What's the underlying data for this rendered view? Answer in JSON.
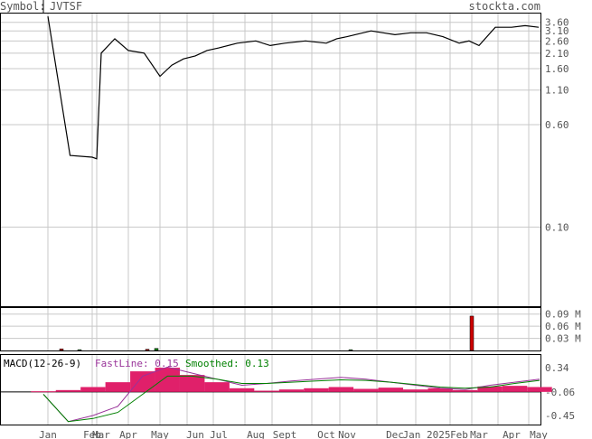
{
  "header": {
    "symbol_label": "Symbol:",
    "symbol": "JVTSF",
    "site": "stockta.com"
  },
  "colors": {
    "price_line": "#000000",
    "grid": "#c8c8c8",
    "volume_up": "#008000",
    "volume_down": "#cc0000",
    "macd_fast": "#993399",
    "macd_smooth": "#008000",
    "macd_hist": "#e0206a",
    "label_text": "#555555"
  },
  "chart_data": {
    "type": "line",
    "price_axis": {
      "scale": "log",
      "tick_labels": [
        "3.60",
        "3.10",
        "2.60",
        "2.10",
        "1.60",
        "1.10",
        "0.60",
        "0.10"
      ]
    },
    "x_labels": [
      "Jan",
      "Feb",
      "Mar",
      "Apr",
      "May",
      "Jun",
      "Jul",
      "Aug",
      "Sept",
      "Oct",
      "Nov",
      "Dec",
      "Jan 2025",
      "Feb",
      "Mar",
      "Apr",
      "May"
    ],
    "price": [
      [
        "Jan",
        4.0
      ],
      [
        "Jan",
        0.35
      ],
      [
        "Feb",
        0.34
      ],
      [
        "Feb",
        0.33
      ],
      [
        "Mar",
        2.1
      ],
      [
        "Mar",
        2.7
      ],
      [
        "Apr",
        2.2
      ],
      [
        "Apr",
        2.1
      ],
      [
        "May",
        1.4
      ],
      [
        "May",
        1.7
      ],
      [
        "May",
        1.9
      ],
      [
        "Jun",
        2.0
      ],
      [
        "Jun",
        2.2
      ],
      [
        "Jul",
        2.3
      ],
      [
        "Jul",
        2.5
      ],
      [
        "Aug",
        2.6
      ],
      [
        "Aug",
        2.4
      ],
      [
        "Sept",
        2.5
      ],
      [
        "Sept",
        2.6
      ],
      [
        "Oct",
        2.5
      ],
      [
        "Oct",
        2.7
      ],
      [
        "Nov",
        2.8
      ],
      [
        "Nov",
        3.1
      ],
      [
        "Dec",
        2.9
      ],
      [
        "Dec",
        3.0
      ],
      [
        "Jan 2025",
        3.0
      ],
      [
        "Jan 2025",
        2.8
      ],
      [
        "Feb",
        2.5
      ],
      [
        "Feb",
        2.6
      ],
      [
        "Mar",
        2.4
      ],
      [
        "Mar",
        3.3
      ],
      [
        "Apr",
        3.3
      ],
      [
        "Apr",
        3.4
      ],
      [
        "May",
        3.3
      ]
    ],
    "volume": {
      "tick_labels": [
        "0.09 M",
        "0.06 M",
        "0.03 M"
      ],
      "bars": [
        {
          "x": "Jan",
          "v": 0.004,
          "dir": "down"
        },
        {
          "x": "Feb",
          "v": 0.002,
          "dir": "up"
        },
        {
          "x": "Apr",
          "v": 0.003,
          "dir": "down"
        },
        {
          "x": "May",
          "v": 0.005,
          "dir": "up"
        },
        {
          "x": "Oct",
          "v": 0.002,
          "dir": "up"
        },
        {
          "x": "Feb",
          "v": 0.085,
          "dir": "down"
        }
      ]
    },
    "macd": {
      "label": "MACD(12-26-9)",
      "fast_label": "FastLine: 0.15",
      "smooth_label": "Smoothed: 0.13",
      "tick_labels": [
        "0.34",
        "-0.06",
        "-0.45"
      ],
      "fast": [
        -0.1,
        -0.55,
        -0.45,
        -0.3,
        0.2,
        0.35,
        0.25,
        0.15,
        0.05,
        0.08,
        0.12,
        0.15,
        0.18,
        0.15,
        0.1,
        0.05,
        0.0,
        -0.02,
        0.05,
        0.1,
        0.15
      ],
      "smooth": [
        -0.1,
        -0.55,
        -0.5,
        -0.4,
        -0.1,
        0.2,
        0.2,
        0.15,
        0.08,
        0.08,
        0.1,
        0.12,
        0.14,
        0.13,
        0.1,
        0.06,
        0.02,
        0.0,
        0.02,
        0.08,
        0.13
      ],
      "hist": [
        -0.05,
        -0.03,
        0.02,
        0.1,
        0.28,
        0.34,
        0.22,
        0.1,
        0.0,
        -0.04,
        -0.02,
        0.0,
        0.02,
        -0.01,
        0.01,
        -0.02,
        0.0,
        -0.03,
        0.03,
        0.04,
        0.02
      ]
    }
  }
}
